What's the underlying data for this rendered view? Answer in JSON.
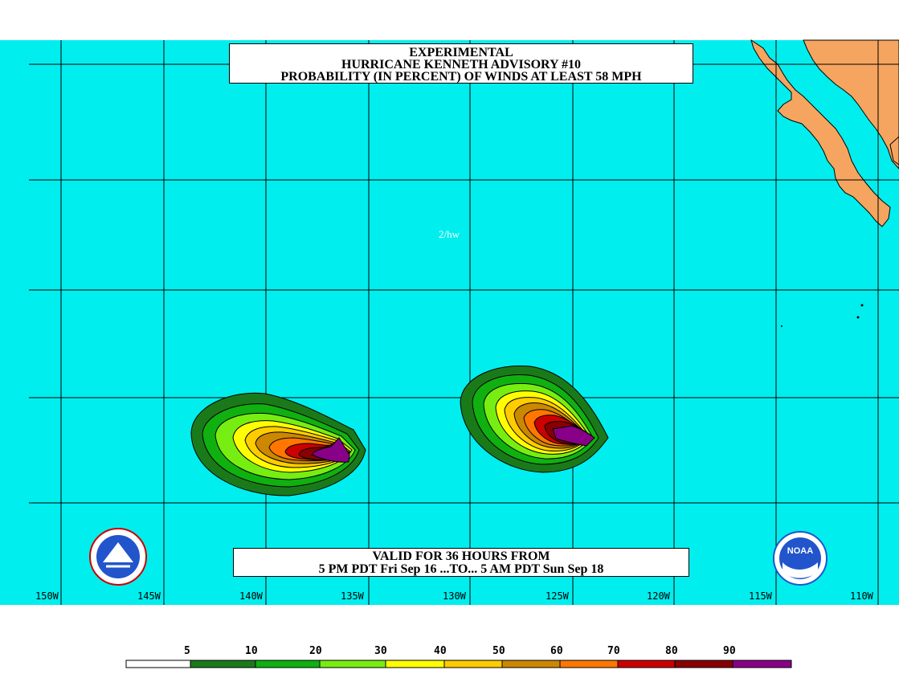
{
  "title": {
    "line1": "EXPERIMENTAL",
    "line2": "HURRICANE KENNETH ADVISORY #10",
    "line3": "PROBABILITY (IN PERCENT) OF WINDS AT LEAST 58 MPH"
  },
  "valid": {
    "line1": "VALID FOR 36 HOURS FROM",
    "line2": "5 PM PDT Fri Sep 16 ...TO... 5 AM PDT Sun Sep 18"
  },
  "initials": "2/hw",
  "longitude_labels": [
    "150W",
    "145W",
    "140W",
    "135W",
    "130W",
    "125W",
    "120W",
    "115W",
    "110W"
  ],
  "legend": {
    "labels": [
      "5",
      "10",
      "20",
      "30",
      "40",
      "50",
      "60",
      "70",
      "80",
      "90"
    ],
    "colors": [
      "#ffffff",
      "#1a7a1a",
      "#10b010",
      "#77ee11",
      "#ffff00",
      "#ffcc00",
      "#cc8800",
      "#ff7700",
      "#cc0000",
      "#880000",
      "#880088"
    ]
  },
  "colors": {
    "ocean": "#00eeee",
    "land": "#f5a55f",
    "grid": "#000000"
  },
  "icons": [
    "nws-logo-icon",
    "noaa-logo-icon"
  ]
}
